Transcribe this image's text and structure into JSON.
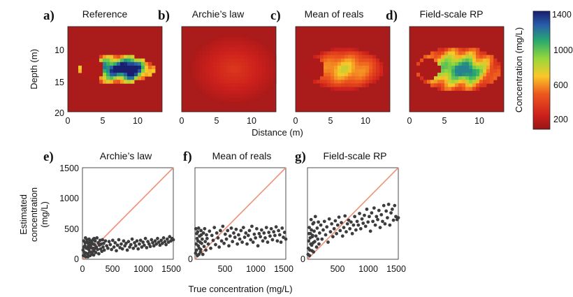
{
  "figure": {
    "panels_top": [
      {
        "letter": "a)",
        "title": "Reference"
      },
      {
        "letter": "b)",
        "title": "Archie’s law"
      },
      {
        "letter": "c)",
        "title": "Mean of reals"
      },
      {
        "letter": "d)",
        "title": "Field-scale RP"
      }
    ],
    "panels_bottom": [
      {
        "letter": "e)",
        "title": "Archie’s law"
      },
      {
        "letter": "f)",
        "title": "Mean of reals"
      },
      {
        "letter": "g)",
        "title": "Field-scale RP"
      }
    ],
    "top_ylabel": "Depth (m)",
    "top_xlabel": "Distance (m)",
    "top_xticks": [
      "0",
      "5",
      "10"
    ],
    "top_yticks": [
      "10",
      "15",
      "20"
    ],
    "colorbar_label": "Concentration (mg/L)",
    "colorbar_ticks": [
      "200",
      "600",
      "1000",
      "1400"
    ],
    "bottom_ylabel": [
      "Estimated",
      "concentration",
      "(mg/L)"
    ],
    "bottom_xlabel": "True concentration (mg/L)",
    "bottom_xticks": [
      "0",
      "500",
      "1000",
      "1500"
    ],
    "bottom_yticks": [
      "0",
      "500",
      "1000",
      "1500"
    ]
  },
  "chart_data": [
    {
      "type": "heatmap",
      "panel": "a",
      "title": "Reference",
      "xlabel": "Distance (m)",
      "ylabel": "Depth (m)",
      "xlim": [
        0,
        13.5
      ],
      "ylim": [
        7,
        20
      ],
      "colorbar": {
        "label": "Concentration (mg/L)",
        "range": [
          0,
          1400
        ],
        "ticks": [
          200,
          600,
          1000,
          1400
        ]
      },
      "features": {
        "background_mg_L": 60,
        "plume_center_m": [
          7.5,
          13.5
        ],
        "peak_mg_L": 1400,
        "low_core_near_m": [
          2.5,
          13.5
        ]
      }
    },
    {
      "type": "heatmap",
      "panel": "b",
      "title": "Archie’s law",
      "xlim": [
        0,
        13.5
      ],
      "ylim": [
        7,
        20
      ],
      "features": {
        "background_mg_L": 60,
        "center_m": [
          7.5,
          13.5
        ],
        "peak_mg_L": 260
      }
    },
    {
      "type": "heatmap",
      "panel": "c",
      "title": "Mean of reals",
      "xlim": [
        0,
        13.5
      ],
      "ylim": [
        7,
        20
      ],
      "features": {
        "background_mg_L": 60,
        "center_m": [
          6.5,
          13.5
        ],
        "peak_mg_L": 700
      }
    },
    {
      "type": "heatmap",
      "panel": "d",
      "title": "Field-scale RP",
      "xlim": [
        0,
        13.5
      ],
      "ylim": [
        7,
        20
      ],
      "features": {
        "background_mg_L": 60,
        "center_m": [
          7.5,
          13.5
        ],
        "peak_mg_L": 1000
      }
    },
    {
      "type": "scatter",
      "panel": "e",
      "title": "Archie’s law",
      "xlabel": "True concentration (mg/L)",
      "ylabel": "Estimated concentration (mg/L)",
      "xlim": [
        0,
        1500
      ],
      "ylim": [
        0,
        1500
      ],
      "reference_line": [
        [
          0,
          0
        ],
        [
          1500,
          1500
        ]
      ],
      "points": [
        [
          10,
          150
        ],
        [
          20,
          300
        ],
        [
          30,
          60
        ],
        [
          40,
          220
        ],
        [
          50,
          350
        ],
        [
          60,
          100
        ],
        [
          70,
          280
        ],
        [
          80,
          180
        ],
        [
          90,
          40
        ],
        [
          100,
          250
        ],
        [
          110,
          330
        ],
        [
          120,
          120
        ],
        [
          130,
          200
        ],
        [
          140,
          300
        ],
        [
          150,
          80
        ],
        [
          160,
          260
        ],
        [
          170,
          180
        ],
        [
          180,
          330
        ],
        [
          190,
          140
        ],
        [
          200,
          240
        ],
        [
          210,
          300
        ],
        [
          220,
          110
        ],
        [
          230,
          200
        ],
        [
          240,
          350
        ],
        [
          250,
          160
        ],
        [
          260,
          270
        ],
        [
          270,
          90
        ],
        [
          280,
          230
        ],
        [
          290,
          310
        ],
        [
          300,
          170
        ],
        [
          310,
          250
        ],
        [
          320,
          130
        ],
        [
          330,
          320
        ],
        [
          340,
          200
        ],
        [
          350,
          260
        ],
        [
          360,
          150
        ],
        [
          380,
          300
        ],
        [
          400,
          220
        ],
        [
          420,
          180
        ],
        [
          440,
          290
        ],
        [
          460,
          240
        ],
        [
          480,
          160
        ],
        [
          500,
          310
        ],
        [
          520,
          200
        ],
        [
          540,
          270
        ],
        [
          560,
          140
        ],
        [
          580,
          230
        ],
        [
          600,
          320
        ],
        [
          620,
          190
        ],
        [
          640,
          250
        ],
        [
          660,
          170
        ],
        [
          680,
          300
        ],
        [
          700,
          220
        ],
        [
          720,
          260
        ],
        [
          740,
          150
        ],
        [
          760,
          290
        ],
        [
          780,
          200
        ],
        [
          800,
          240
        ],
        [
          820,
          330
        ],
        [
          840,
          180
        ],
        [
          860,
          270
        ],
        [
          880,
          220
        ],
        [
          900,
          300
        ],
        [
          920,
          170
        ],
        [
          940,
          250
        ],
        [
          960,
          310
        ],
        [
          980,
          200
        ],
        [
          1000,
          280
        ],
        [
          1020,
          230
        ],
        [
          1040,
          340
        ],
        [
          1060,
          190
        ],
        [
          1080,
          290
        ],
        [
          1100,
          250
        ],
        [
          1120,
          210
        ],
        [
          1140,
          320
        ],
        [
          1160,
          270
        ],
        [
          1180,
          220
        ],
        [
          1200,
          300
        ],
        [
          1220,
          250
        ],
        [
          1240,
          340
        ],
        [
          1260,
          280
        ],
        [
          1280,
          230
        ],
        [
          1300,
          310
        ],
        [
          1320,
          260
        ],
        [
          1340,
          350
        ],
        [
          1360,
          290
        ],
        [
          1380,
          240
        ],
        [
          1400,
          330
        ],
        [
          1420,
          280
        ],
        [
          1440,
          370
        ],
        [
          1460,
          300
        ],
        [
          1480,
          340
        ],
        [
          1500,
          320
        ],
        [
          15,
          60
        ],
        [
          25,
          200
        ],
        [
          35,
          110
        ],
        [
          45,
          270
        ],
        [
          55,
          40
        ],
        [
          65,
          180
        ],
        [
          75,
          320
        ],
        [
          85,
          90
        ],
        [
          95,
          210
        ],
        [
          105,
          160
        ],
        [
          115,
          280
        ],
        [
          125,
          60
        ],
        [
          135,
          230
        ],
        [
          145,
          190
        ],
        [
          155,
          300
        ],
        [
          165,
          120
        ],
        [
          175,
          250
        ],
        [
          185,
          70
        ],
        [
          195,
          340
        ],
        [
          205,
          180
        ]
      ]
    },
    {
      "type": "scatter",
      "panel": "f",
      "title": "Mean of reals",
      "xlabel": "True concentration (mg/L)",
      "ylabel": "Estimated concentration (mg/L)",
      "xlim": [
        0,
        1500
      ],
      "ylim": [
        0,
        1500
      ],
      "reference_line": [
        [
          0,
          0
        ],
        [
          1500,
          1500
        ]
      ],
      "points": [
        [
          10,
          100
        ],
        [
          20,
          250
        ],
        [
          30,
          420
        ],
        [
          40,
          60
        ],
        [
          50,
          300
        ],
        [
          60,
          510
        ],
        [
          70,
          180
        ],
        [
          80,
          380
        ],
        [
          90,
          120
        ],
        [
          100,
          470
        ],
        [
          110,
          260
        ],
        [
          120,
          330
        ],
        [
          130,
          80
        ],
        [
          140,
          430
        ],
        [
          150,
          210
        ],
        [
          160,
          500
        ],
        [
          170,
          290
        ],
        [
          180,
          150
        ],
        [
          190,
          400
        ],
        [
          200,
          340
        ],
        [
          220,
          250
        ],
        [
          240,
          460
        ],
        [
          260,
          180
        ],
        [
          280,
          390
        ],
        [
          300,
          310
        ],
        [
          320,
          520
        ],
        [
          340,
          240
        ],
        [
          360,
          430
        ],
        [
          380,
          350
        ],
        [
          400,
          200
        ],
        [
          420,
          470
        ],
        [
          440,
          300
        ],
        [
          460,
          540
        ],
        [
          480,
          260
        ],
        [
          500,
          410
        ],
        [
          520,
          330
        ],
        [
          540,
          470
        ],
        [
          560,
          220
        ],
        [
          580,
          380
        ],
        [
          600,
          510
        ],
        [
          620,
          290
        ],
        [
          640,
          430
        ],
        [
          660,
          360
        ],
        [
          680,
          490
        ],
        [
          700,
          250
        ],
        [
          720,
          400
        ],
        [
          740,
          330
        ],
        [
          760,
          470
        ],
        [
          780,
          280
        ],
        [
          800,
          520
        ],
        [
          820,
          360
        ],
        [
          840,
          430
        ],
        [
          860,
          250
        ],
        [
          880,
          390
        ],
        [
          900,
          470
        ],
        [
          920,
          320
        ],
        [
          940,
          540
        ],
        [
          960,
          280
        ],
        [
          980,
          410
        ],
        [
          1000,
          350
        ],
        [
          1020,
          500
        ],
        [
          1040,
          220
        ],
        [
          1060,
          420
        ],
        [
          1080,
          370
        ],
        [
          1100,
          480
        ],
        [
          1120,
          300
        ],
        [
          1140,
          430
        ],
        [
          1160,
          350
        ],
        [
          1180,
          520
        ],
        [
          1200,
          280
        ],
        [
          1220,
          440
        ],
        [
          1240,
          380
        ],
        [
          1260,
          500
        ],
        [
          1280,
          320
        ],
        [
          1300,
          450
        ],
        [
          1320,
          390
        ],
        [
          1340,
          530
        ],
        [
          1360,
          300
        ],
        [
          1380,
          470
        ],
        [
          1400,
          400
        ],
        [
          1420,
          280
        ],
        [
          1440,
          510
        ],
        [
          1460,
          360
        ],
        [
          1480,
          440
        ],
        [
          1500,
          330
        ],
        [
          15,
          500
        ],
        [
          25,
          150
        ],
        [
          35,
          340
        ],
        [
          45,
          450
        ],
        [
          55,
          220
        ],
        [
          65,
          80
        ],
        [
          75,
          380
        ],
        [
          85,
          280
        ],
        [
          95,
          160
        ],
        [
          105,
          400
        ]
      ]
    },
    {
      "type": "scatter",
      "panel": "g",
      "title": "Field-scale RP",
      "xlabel": "True concentration (mg/L)",
      "ylabel": "Estimated concentration (mg/L)",
      "xlim": [
        0,
        1500
      ],
      "ylim": [
        0,
        1500
      ],
      "reference_line": [
        [
          0,
          0
        ],
        [
          1500,
          1500
        ]
      ],
      "points": [
        [
          10,
          80
        ],
        [
          20,
          300
        ],
        [
          30,
          520
        ],
        [
          40,
          150
        ],
        [
          50,
          420
        ],
        [
          60,
          650
        ],
        [
          70,
          230
        ],
        [
          80,
          370
        ],
        [
          90,
          580
        ],
        [
          100,
          120
        ],
        [
          110,
          460
        ],
        [
          120,
          290
        ],
        [
          130,
          700
        ],
        [
          140,
          380
        ],
        [
          150,
          200
        ],
        [
          160,
          510
        ],
        [
          170,
          330
        ],
        [
          180,
          610
        ],
        [
          190,
          250
        ],
        [
          200,
          430
        ],
        [
          220,
          560
        ],
        [
          240,
          330
        ],
        [
          260,
          480
        ],
        [
          280,
          620
        ],
        [
          300,
          400
        ],
        [
          320,
          530
        ],
        [
          340,
          280
        ],
        [
          360,
          660
        ],
        [
          380,
          450
        ],
        [
          400,
          580
        ],
        [
          420,
          370
        ],
        [
          440,
          500
        ],
        [
          460,
          630
        ],
        [
          480,
          420
        ],
        [
          500,
          560
        ],
        [
          520,
          690
        ],
        [
          540,
          470
        ],
        [
          560,
          600
        ],
        [
          580,
          380
        ],
        [
          600,
          520
        ],
        [
          620,
          710
        ],
        [
          640,
          450
        ],
        [
          660,
          580
        ],
        [
          680,
          640
        ],
        [
          700,
          500
        ],
        [
          720,
          610
        ],
        [
          740,
          420
        ],
        [
          760,
          560
        ],
        [
          780,
          700
        ],
        [
          800,
          480
        ],
        [
          820,
          620
        ],
        [
          840,
          560
        ],
        [
          860,
          750
        ],
        [
          880,
          500
        ],
        [
          900,
          660
        ],
        [
          920,
          590
        ],
        [
          940,
          720
        ],
        [
          960,
          540
        ],
        [
          980,
          820
        ],
        [
          1000,
          610
        ],
        [
          1020,
          700
        ],
        [
          1040,
          460
        ],
        [
          1060,
          760
        ],
        [
          1080,
          620
        ],
        [
          1100,
          840
        ],
        [
          1120,
          560
        ],
        [
          1140,
          700
        ],
        [
          1160,
          650
        ],
        [
          1180,
          800
        ],
        [
          1200,
          520
        ],
        [
          1220,
          730
        ],
        [
          1240,
          620
        ],
        [
          1260,
          880
        ],
        [
          1280,
          580
        ],
        [
          1300,
          790
        ],
        [
          1320,
          680
        ],
        [
          1340,
          900
        ],
        [
          1360,
          560
        ],
        [
          1380,
          760
        ],
        [
          1400,
          820
        ],
        [
          1420,
          640
        ],
        [
          1440,
          880
        ],
        [
          1460,
          700
        ],
        [
          1480,
          650
        ],
        [
          1500,
          680
        ],
        [
          15,
          180
        ],
        [
          25,
          420
        ],
        [
          35,
          60
        ],
        [
          45,
          350
        ],
        [
          55,
          250
        ],
        [
          65,
          480
        ],
        [
          75,
          140
        ],
        [
          85,
          390
        ],
        [
          95,
          270
        ],
        [
          105,
          600
        ]
      ]
    }
  ]
}
